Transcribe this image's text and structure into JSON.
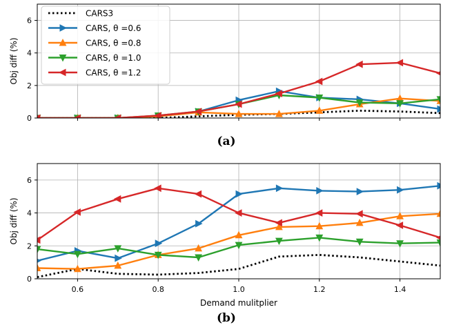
{
  "chart_data": [
    {
      "panel": "(a)",
      "type": "line",
      "ylabel": "Obj diff (%)",
      "xlabel": "",
      "xlim": [
        0.5,
        1.5
      ],
      "ylim": [
        0,
        7
      ],
      "x_ticks": [],
      "y_ticks": [
        "0",
        "2",
        "4",
        "6"
      ],
      "grid": true,
      "legend_position": "top-left",
      "x": [
        0.5,
        0.6,
        0.7,
        0.8,
        0.9,
        1.0,
        1.1,
        1.2,
        1.3,
        1.4,
        1.5
      ],
      "series": [
        {
          "name": "CARS3",
          "color": "#000000",
          "style": "dotted",
          "marker": "none",
          "values": [
            0,
            0,
            0,
            0,
            0.1,
            0.2,
            0.25,
            0.35,
            0.45,
            0.4,
            0.3
          ]
        },
        {
          "name": "CARS, θ =0.6",
          "color": "#1f77b4",
          "style": "solid",
          "marker": "triangle-right",
          "values": [
            0,
            0,
            0,
            0.1,
            0.4,
            1.1,
            1.65,
            1.25,
            1.15,
            0.9,
            0.55
          ]
        },
        {
          "name": "CARS, θ =0.8",
          "color": "#ff7f0e",
          "style": "solid",
          "marker": "triangle-up",
          "values": [
            0,
            0,
            0,
            0.1,
            0.35,
            0.25,
            0.25,
            0.45,
            0.85,
            1.2,
            1.05
          ]
        },
        {
          "name": "CARS, θ =1.0",
          "color": "#2ca02c",
          "style": "solid",
          "marker": "triangle-down",
          "values": [
            0,
            0,
            0,
            0.15,
            0.4,
            0.85,
            1.4,
            1.25,
            0.95,
            0.9,
            1.15
          ]
        },
        {
          "name": "CARS, θ =1.2",
          "color": "#d62728",
          "style": "solid",
          "marker": "triangle-left",
          "values": [
            0,
            0,
            0,
            0.15,
            0.4,
            0.85,
            1.5,
            2.25,
            3.3,
            3.4,
            2.75
          ]
        }
      ]
    },
    {
      "panel": "(b)",
      "type": "line",
      "ylabel": "Obj diff (%)",
      "xlabel": "Demand mulitplier",
      "xlim": [
        0.5,
        1.5
      ],
      "ylim": [
        0,
        7
      ],
      "x_ticks": [
        "0.6",
        "0.8",
        "1.0",
        "1.2",
        "1.4"
      ],
      "y_ticks": [
        "0",
        "2",
        "4",
        "6"
      ],
      "grid": true,
      "x": [
        0.5,
        0.6,
        0.7,
        0.8,
        0.9,
        1.0,
        1.1,
        1.2,
        1.3,
        1.4,
        1.5
      ],
      "series": [
        {
          "name": "CARS3",
          "color": "#000000",
          "style": "dotted",
          "marker": "none",
          "values": [
            0.1,
            0.6,
            0.3,
            0.25,
            0.35,
            0.6,
            1.35,
            1.45,
            1.3,
            1.05,
            0.8
          ]
        },
        {
          "name": "CARS, θ =0.6",
          "color": "#1f77b4",
          "style": "solid",
          "marker": "triangle-right",
          "values": [
            1.1,
            1.7,
            1.25,
            2.15,
            3.35,
            5.15,
            5.5,
            5.35,
            5.3,
            5.4,
            5.65
          ]
        },
        {
          "name": "CARS, θ =0.8",
          "color": "#ff7f0e",
          "style": "solid",
          "marker": "triangle-up",
          "values": [
            0.65,
            0.6,
            0.8,
            1.45,
            1.85,
            2.65,
            3.15,
            3.2,
            3.4,
            3.8,
            3.95
          ]
        },
        {
          "name": "CARS, θ =1.0",
          "color": "#2ca02c",
          "style": "solid",
          "marker": "triangle-down",
          "values": [
            1.8,
            1.5,
            1.85,
            1.45,
            1.3,
            2.05,
            2.3,
            2.5,
            2.25,
            2.15,
            2.2
          ]
        },
        {
          "name": "CARS, θ =1.2",
          "color": "#d62728",
          "style": "solid",
          "marker": "triangle-left",
          "values": [
            2.35,
            4.05,
            4.85,
            5.5,
            5.15,
            4.0,
            3.4,
            4.0,
            3.95,
            3.25,
            2.5
          ]
        }
      ]
    }
  ]
}
